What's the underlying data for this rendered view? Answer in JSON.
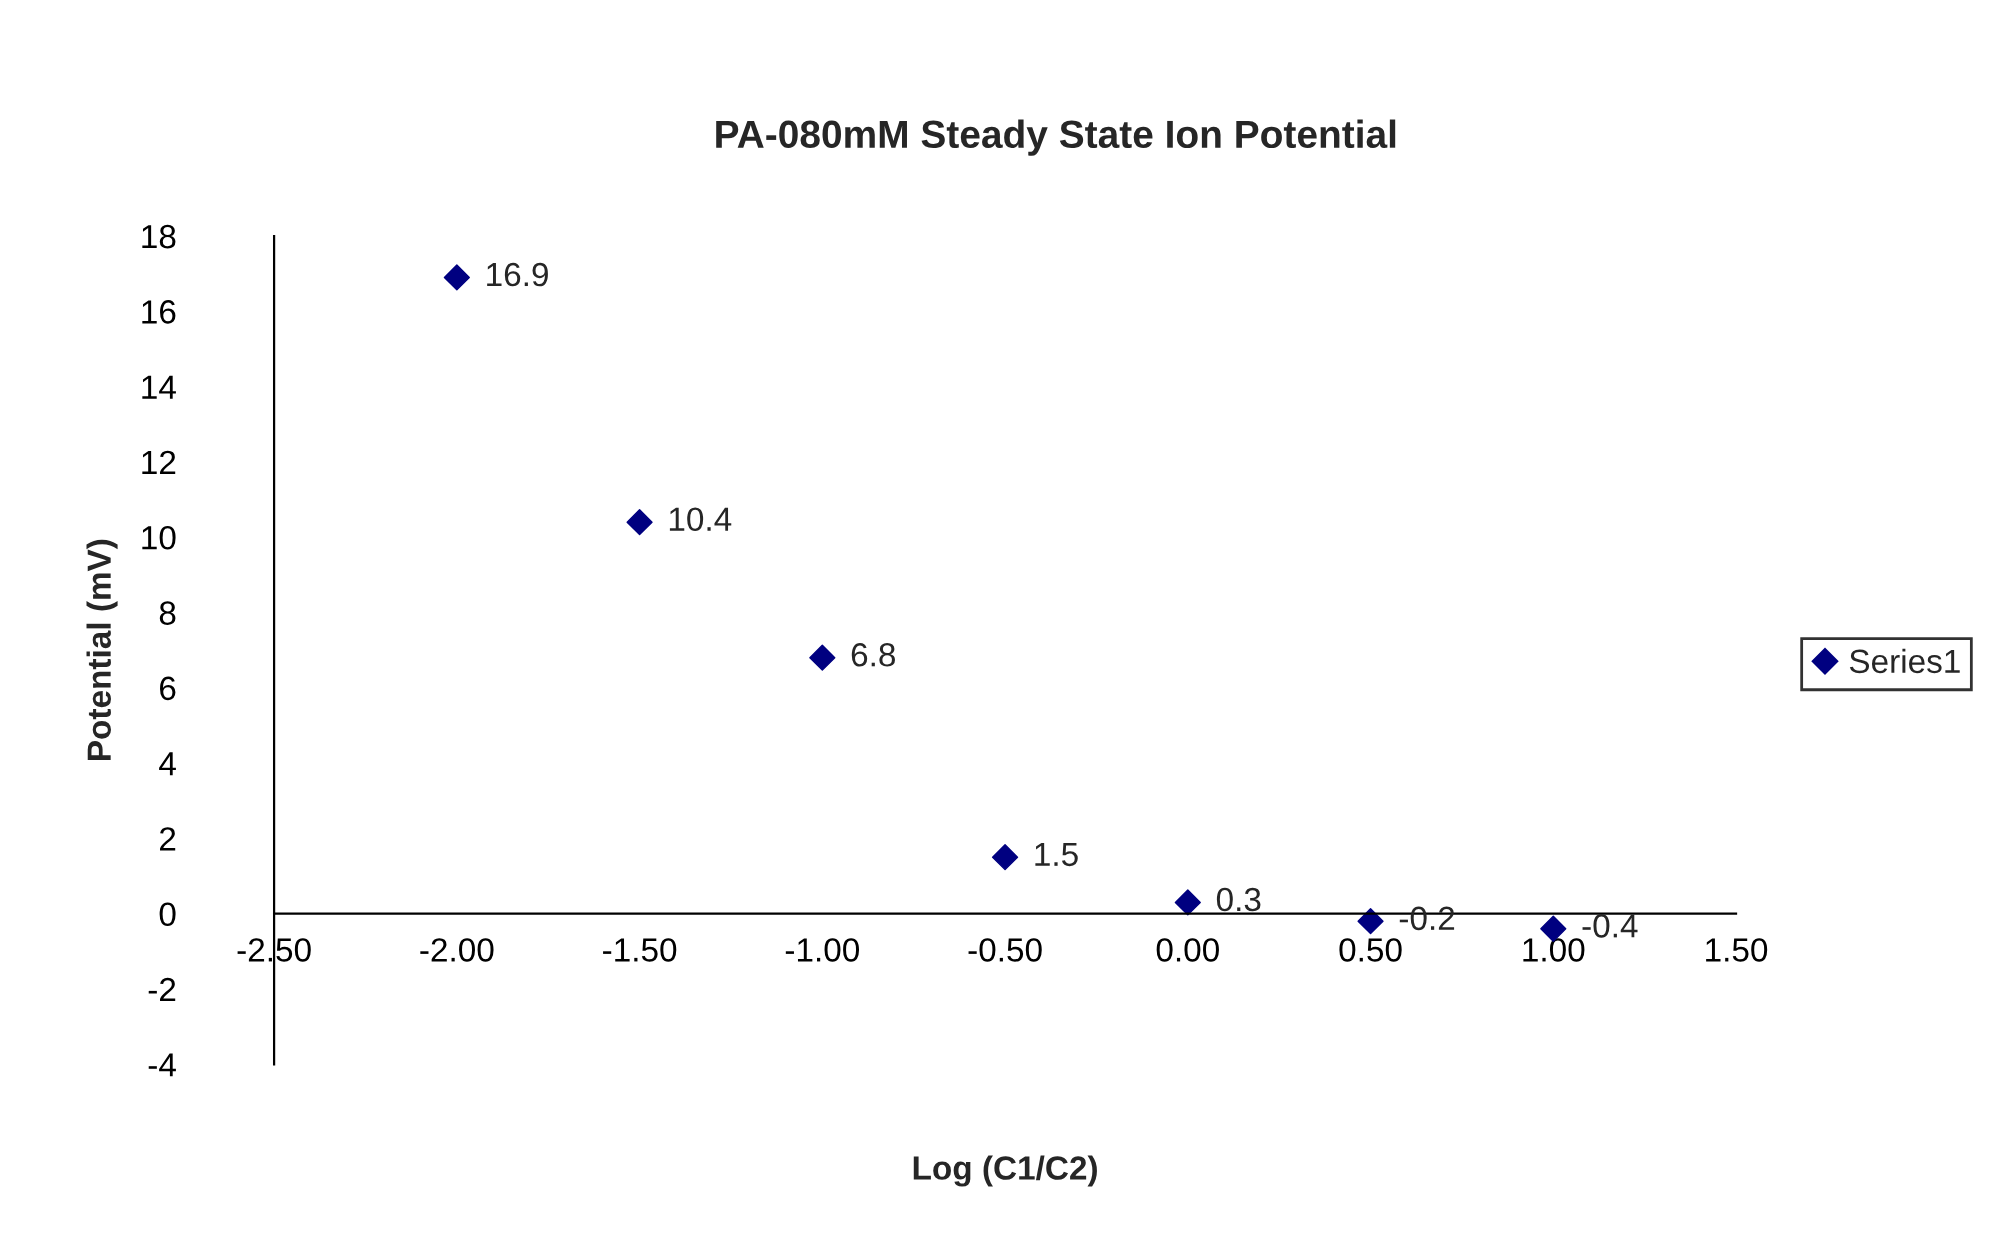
{
  "chart_data": {
    "type": "scatter",
    "title": "PA-080mM Steady State Ion Potential",
    "xlabel": "Log (C1/C2)",
    "ylabel": "Potential (mV)",
    "x": [
      -2.0,
      -1.5,
      -1.0,
      -0.5,
      0.0,
      0.5,
      1.0
    ],
    "series": [
      {
        "name": "Series1",
        "color": "#000080",
        "values": [
          16.9,
          10.4,
          6.8,
          1.5,
          0.3,
          -0.2,
          -0.4
        ]
      }
    ],
    "xlim": [
      -2.5,
      1.5
    ],
    "xticks": [
      {
        "value": -2.5,
        "label": "-2.50"
      },
      {
        "value": -2.0,
        "label": "-2.00"
      },
      {
        "value": -1.5,
        "label": "-1.50"
      },
      {
        "value": -1.0,
        "label": "-1.00"
      },
      {
        "value": -0.5,
        "label": "-0.50"
      },
      {
        "value": 0.0,
        "label": "0.00"
      },
      {
        "value": 0.5,
        "label": "0.50"
      },
      {
        "value": 1.0,
        "label": "1.00"
      },
      {
        "value": 1.5,
        "label": "1.50"
      }
    ],
    "ylim": [
      -4,
      18
    ],
    "yticks": [
      -4,
      -2,
      0,
      2,
      4,
      6,
      8,
      10,
      12,
      14,
      16,
      18
    ],
    "marker": "diamond",
    "data_labels": true,
    "grid": false,
    "legend": "right"
  }
}
